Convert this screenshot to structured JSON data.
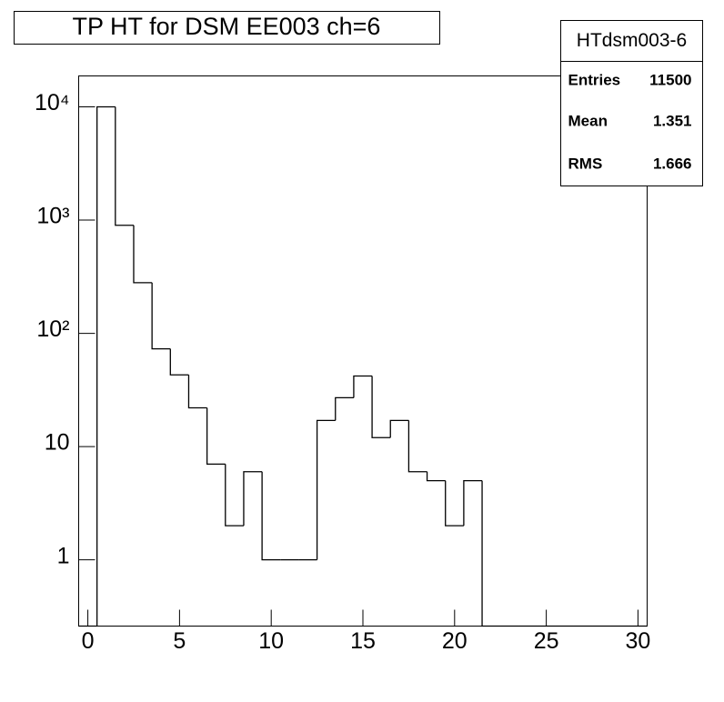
{
  "chart_data": {
    "type": "histogram",
    "title": "TP HT for DSM EE003 ch=6",
    "bins": [
      -0.5,
      0.5,
      1.5,
      2.5,
      3.5,
      4.5,
      5.5,
      6.5,
      7.5,
      8.5,
      9.5,
      10.5,
      11.5,
      12.5,
      13.5,
      14.5,
      15.5,
      16.5,
      17.5,
      18.5,
      19.5,
      20.5,
      21.5,
      22.5,
      23.5,
      24.5,
      25.5,
      26.5,
      27.5,
      28.5,
      29.5,
      30.5
    ],
    "values": [
      0,
      10000,
      900,
      280,
      73,
      43,
      22,
      7,
      2,
      6,
      1,
      1,
      1,
      17,
      27,
      42,
      12,
      17,
      6,
      5,
      2,
      5,
      0,
      0,
      0,
      0,
      0,
      0,
      0,
      0,
      0
    ],
    "color": "#000000",
    "xlim": [
      -0.5,
      30.5
    ],
    "xticks": [
      0,
      5,
      10,
      15,
      20,
      25,
      30
    ],
    "ylim": [
      0.26,
      18750
    ],
    "log_y": true,
    "yticks": [
      1,
      10,
      {
        "value": 100,
        "label": "10²"
      },
      {
        "value": 1000,
        "label": "10³"
      },
      {
        "value": 10000,
        "label": "10⁴"
      }
    ],
    "stats": {
      "name": "HTdsm003-6",
      "entries_label": "Entries",
      "entries": 11500,
      "mean_label": "Mean",
      "mean": 1.351,
      "rms_label": "RMS",
      "rms": 1.666
    }
  }
}
